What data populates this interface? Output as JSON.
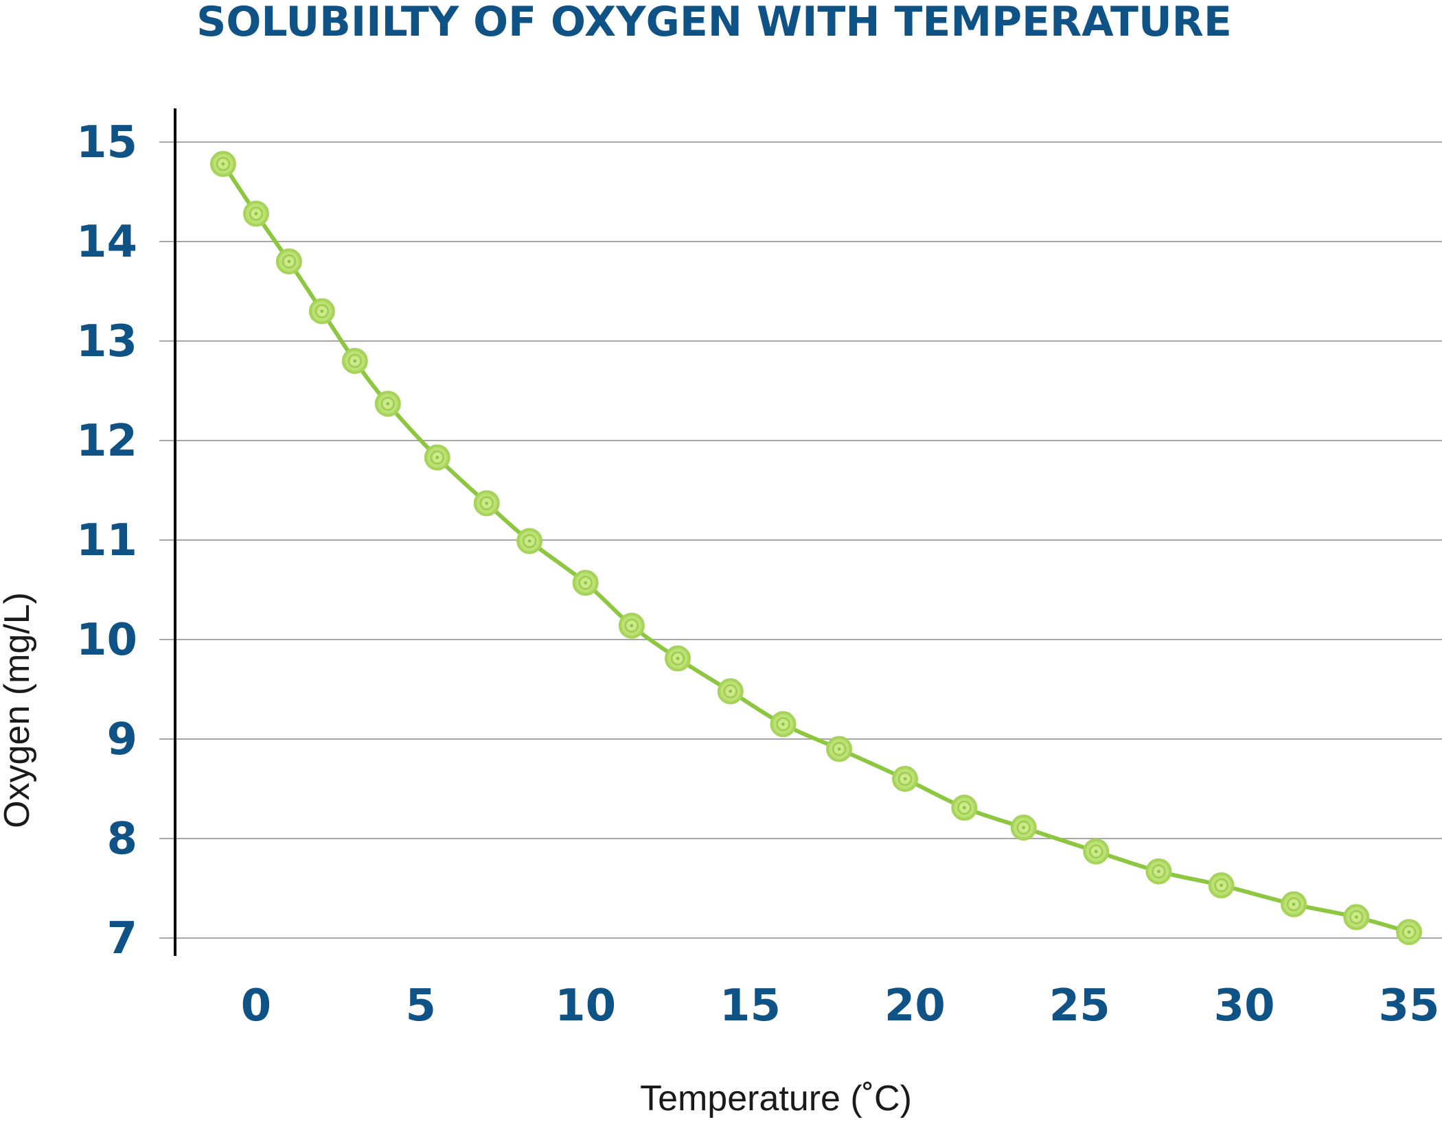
{
  "chart_data": {
    "type": "line",
    "title": "SOLUBIILTY OF OXYGEN WITH TEMPERATURE",
    "xlabel": "Temperature (˚C)",
    "ylabel": "Oxygen (mg/L)",
    "xlim": [
      -2.5,
      36
    ],
    "ylim": [
      6.9,
      15.35
    ],
    "x_ticks": [
      0,
      5,
      10,
      15,
      20,
      25,
      30,
      35
    ],
    "y_ticks": [
      7,
      8,
      9,
      10,
      11,
      12,
      13,
      14,
      15
    ],
    "grid": "horizontal",
    "colors": {
      "line": "#8dc63f",
      "marker": "#a6d45a",
      "grid": "#a6a6a6",
      "axis": "#000000",
      "tick_text": "#0f5285"
    },
    "series": [
      {
        "x": [
          -1,
          0,
          1,
          2,
          3,
          4,
          5.5,
          7,
          8.3,
          10,
          11.4,
          12.8,
          14.4,
          16,
          17.7,
          19.7,
          21.5,
          23.3,
          25.5,
          27.4,
          29.3,
          31.5,
          33.4,
          35
        ],
        "y": [
          14.78,
          14.28,
          13.8,
          13.3,
          12.8,
          12.37,
          11.83,
          11.37,
          10.99,
          10.57,
          10.14,
          9.81,
          9.48,
          9.15,
          8.9,
          8.6,
          8.31,
          8.11,
          7.87,
          7.67,
          7.53,
          7.34,
          7.21,
          7.06
        ]
      }
    ]
  }
}
